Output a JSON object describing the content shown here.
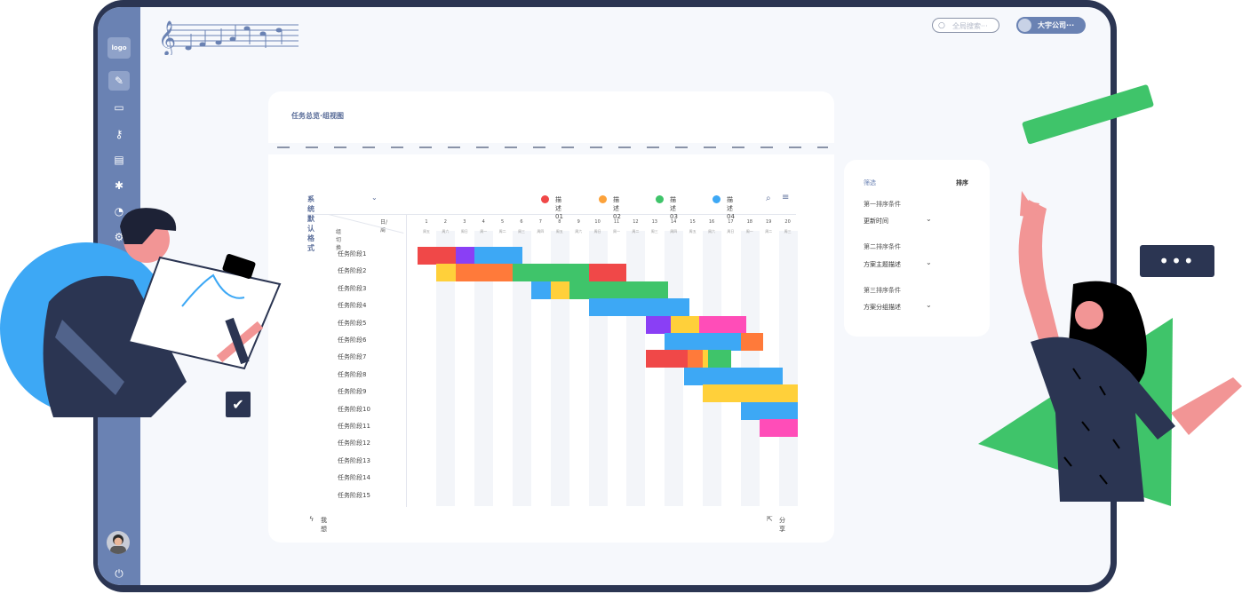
{
  "header": {
    "search_placeholder": "全局搜索···",
    "company": "大宇公司···"
  },
  "sidebar": {
    "logo": "logo",
    "icons": [
      "pen-icon",
      "folder-icon",
      "key-icon",
      "clipboard-icon",
      "bug-icon",
      "chart-icon",
      "settings-icon"
    ]
  },
  "panel": {
    "title": "任务总览·组视图"
  },
  "gantt": {
    "view_selector": "系统默认格式",
    "corner_top": "日/周",
    "corner_left": "组切换",
    "legend": [
      {
        "label": "描述01",
        "color": "#f04848"
      },
      {
        "label": "描述02",
        "color": "#fca23a"
      },
      {
        "label": "描述03",
        "color": "#3fc46a"
      },
      {
        "label": "描述04",
        "color": "#3da8f5"
      }
    ],
    "days": [
      "1",
      "2",
      "3",
      "4",
      "5",
      "6",
      "7",
      "8",
      "9",
      "10",
      "11",
      "12",
      "13",
      "14",
      "15",
      "16",
      "17",
      "18",
      "19",
      "20"
    ],
    "weekdays": [
      "周五",
      "周六",
      "周日",
      "周一",
      "周二",
      "周三",
      "周四",
      "周五",
      "周六",
      "周日",
      "周一",
      "周二",
      "周三",
      "周四",
      "周五",
      "周六",
      "周日",
      "周一",
      "周二",
      "周三"
    ],
    "tasks": [
      "任务阶段1",
      "任务阶段2",
      "任务阶段3",
      "任务阶段4",
      "任务阶段5",
      "任务阶段6",
      "任务阶段7",
      "任务阶段8",
      "任务阶段9",
      "任务阶段10",
      "任务阶段11",
      "任务阶段12",
      "任务阶段13",
      "任务阶段14",
      "任务阶段15"
    ],
    "bars": [
      {
        "row": 0,
        "start": 1,
        "end": 3,
        "color": "#f04848"
      },
      {
        "row": 0,
        "start": 3,
        "end": 4,
        "color": "#8a3ff5"
      },
      {
        "row": 0,
        "start": 4,
        "end": 6.5,
        "color": "#3da8f5"
      },
      {
        "row": 1,
        "start": 2,
        "end": 3,
        "color": "#ffd03a"
      },
      {
        "row": 1,
        "start": 3,
        "end": 6,
        "color": "#ff7a3a"
      },
      {
        "row": 1,
        "start": 6,
        "end": 10,
        "color": "#3fc46a"
      },
      {
        "row": 1,
        "start": 10,
        "end": 12,
        "color": "#f04848"
      },
      {
        "row": 2,
        "start": 7,
        "end": 8,
        "color": "#3da8f5"
      },
      {
        "row": 2,
        "start": 8,
        "end": 9,
        "color": "#ffd03a"
      },
      {
        "row": 2,
        "start": 9,
        "end": 14.2,
        "color": "#3fc46a"
      },
      {
        "row": 3,
        "start": 10,
        "end": 15.3,
        "color": "#3da8f5"
      },
      {
        "row": 4,
        "start": 13,
        "end": 14.3,
        "color": "#8a3ff5"
      },
      {
        "row": 4,
        "start": 14.3,
        "end": 15.8,
        "color": "#ffd03a"
      },
      {
        "row": 4,
        "start": 15.8,
        "end": 18.3,
        "color": "#ff4db8"
      },
      {
        "row": 5,
        "start": 14,
        "end": 18,
        "color": "#3da8f5"
      },
      {
        "row": 5,
        "start": 18,
        "end": 19.2,
        "color": "#ff7a3a"
      },
      {
        "row": 6,
        "start": 13,
        "end": 15.2,
        "color": "#f04848"
      },
      {
        "row": 6,
        "start": 15.2,
        "end": 16,
        "color": "#ff7a3a"
      },
      {
        "row": 6,
        "start": 16,
        "end": 16.3,
        "color": "#ffd03a"
      },
      {
        "row": 6,
        "start": 16.3,
        "end": 17.5,
        "color": "#3fc46a"
      },
      {
        "row": 7,
        "start": 15,
        "end": 20.2,
        "color": "#3da8f5"
      },
      {
        "row": 8,
        "start": 16,
        "end": 21,
        "color": "#ffd03a"
      },
      {
        "row": 9,
        "start": 18,
        "end": 21,
        "color": "#3da8f5"
      },
      {
        "row": 10,
        "start": 19,
        "end": 21,
        "color": "#ff4db8"
      }
    ],
    "footer_left": "我想",
    "footer_right": "分享"
  },
  "sort_panel": {
    "tab_filter": "筛选",
    "tab_sort": "排序",
    "groups": [
      {
        "label": "第一排序条件",
        "value": "更新时间"
      },
      {
        "label": "第二排序条件",
        "value": "方案主题描述"
      },
      {
        "label": "第三排序条件",
        "value": "方案分组描述"
      }
    ]
  },
  "misc": {
    "chat_dots": "•••"
  }
}
